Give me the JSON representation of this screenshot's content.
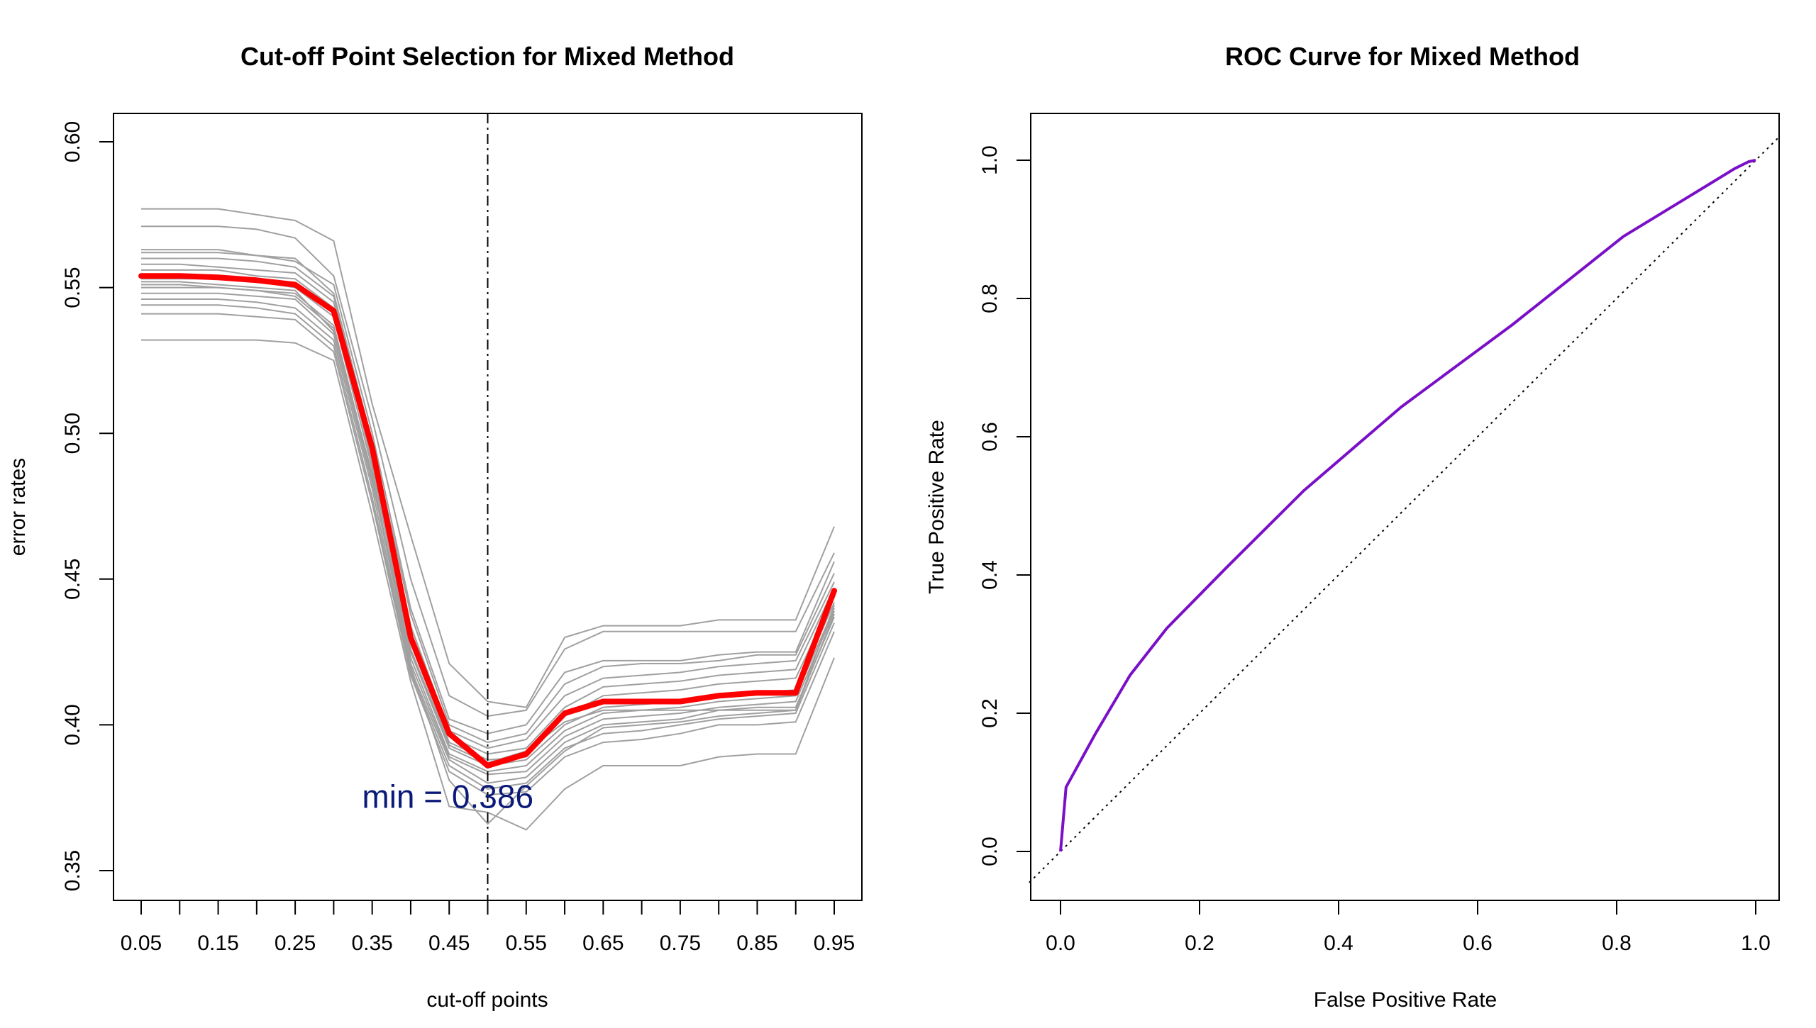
{
  "chart_data": [
    {
      "type": "line",
      "title": "Cut-off Point Selection for Mixed Method",
      "xlabel": "cut-off points",
      "ylabel": "error rates",
      "xlim": [
        0.05,
        0.95
      ],
      "ylim": [
        0.35,
        0.6
      ],
      "x": [
        0.05,
        0.1,
        0.15,
        0.2,
        0.25,
        0.3,
        0.35,
        0.4,
        0.45,
        0.5,
        0.55,
        0.6,
        0.65,
        0.7,
        0.75,
        0.8,
        0.85,
        0.9,
        0.95
      ],
      "x_tick_labels": [
        "0.05",
        "0.15",
        "0.25",
        "0.35",
        "0.45",
        "0.55",
        "0.65",
        "0.75",
        "0.85",
        "0.95"
      ],
      "y_ticks": [
        0.35,
        0.4,
        0.45,
        0.5,
        0.55,
        0.6
      ],
      "y_tick_labels": [
        "0.35",
        "0.40",
        "0.45",
        "0.50",
        "0.55",
        "0.60"
      ],
      "cutoff_line_x": 0.5,
      "annotation": "min = 0.386",
      "mean_color": "#ff0000",
      "background_color": "#a0a0a0",
      "mean": [
        0.554,
        0.554,
        0.5535,
        0.5525,
        0.551,
        0.542,
        0.495,
        0.43,
        0.397,
        0.386,
        0.39,
        0.404,
        0.408,
        0.408,
        0.408,
        0.41,
        0.411,
        0.411,
        0.446
      ],
      "background_series": [
        [
          0.577,
          0.577,
          0.577,
          0.575,
          0.573,
          0.566,
          0.51,
          0.465,
          0.421,
          0.408,
          0.406,
          0.43,
          0.434,
          0.434,
          0.434,
          0.436,
          0.436,
          0.436,
          0.468
        ],
        [
          0.571,
          0.571,
          0.571,
          0.57,
          0.567,
          0.554,
          0.505,
          0.45,
          0.41,
          0.403,
          0.405,
          0.426,
          0.432,
          0.432,
          0.432,
          0.432,
          0.432,
          0.432,
          0.459
        ],
        [
          0.563,
          0.563,
          0.563,
          0.561,
          0.559,
          0.551,
          0.5,
          0.44,
          0.402,
          0.397,
          0.4,
          0.418,
          0.422,
          0.422,
          0.422,
          0.424,
          0.425,
          0.425,
          0.456
        ],
        [
          0.562,
          0.562,
          0.562,
          0.561,
          0.56,
          0.548,
          0.497,
          0.438,
          0.4,
          0.394,
          0.397,
          0.414,
          0.42,
          0.421,
          0.421,
          0.422,
          0.424,
          0.424,
          0.452
        ],
        [
          0.56,
          0.56,
          0.56,
          0.559,
          0.557,
          0.547,
          0.495,
          0.434,
          0.398,
          0.392,
          0.395,
          0.41,
          0.416,
          0.417,
          0.418,
          0.42,
          0.421,
          0.422,
          0.449
        ],
        [
          0.558,
          0.558,
          0.557,
          0.556,
          0.555,
          0.545,
          0.492,
          0.431,
          0.396,
          0.39,
          0.392,
          0.406,
          0.413,
          0.414,
          0.415,
          0.417,
          0.418,
          0.419,
          0.447
        ],
        [
          0.556,
          0.556,
          0.556,
          0.554,
          0.553,
          0.543,
          0.49,
          0.428,
          0.394,
          0.388,
          0.389,
          0.403,
          0.41,
          0.411,
          0.412,
          0.414,
          0.415,
          0.416,
          0.444
        ],
        [
          0.553,
          0.553,
          0.553,
          0.552,
          0.55,
          0.54,
          0.488,
          0.425,
          0.392,
          0.386,
          0.388,
          0.4,
          0.406,
          0.407,
          0.408,
          0.41,
          0.411,
          0.412,
          0.442
        ],
        [
          0.551,
          0.551,
          0.55,
          0.549,
          0.548,
          0.537,
          0.485,
          0.423,
          0.39,
          0.384,
          0.386,
          0.398,
          0.404,
          0.405,
          0.406,
          0.408,
          0.409,
          0.41,
          0.44
        ],
        [
          0.55,
          0.55,
          0.55,
          0.549,
          0.547,
          0.536,
          0.484,
          0.421,
          0.389,
          0.383,
          0.384,
          0.396,
          0.402,
          0.403,
          0.404,
          0.406,
          0.407,
          0.408,
          0.439
        ],
        [
          0.546,
          0.546,
          0.546,
          0.545,
          0.543,
          0.532,
          0.481,
          0.419,
          0.388,
          0.38,
          0.382,
          0.394,
          0.4,
          0.401,
          0.402,
          0.405,
          0.406,
          0.406,
          0.437
        ],
        [
          0.544,
          0.544,
          0.544,
          0.543,
          0.541,
          0.53,
          0.478,
          0.418,
          0.386,
          0.378,
          0.38,
          0.392,
          0.397,
          0.398,
          0.4,
          0.402,
          0.403,
          0.404,
          0.435
        ],
        [
          0.541,
          0.541,
          0.541,
          0.54,
          0.539,
          0.528,
          0.476,
          0.417,
          0.384,
          0.376,
          0.377,
          0.389,
          0.394,
          0.395,
          0.397,
          0.4,
          0.4,
          0.401,
          0.432
        ],
        [
          0.532,
          0.532,
          0.532,
          0.532,
          0.531,
          0.525,
          0.472,
          0.415,
          0.372,
          0.37,
          0.364,
          0.378,
          0.386,
          0.386,
          0.386,
          0.389,
          0.39,
          0.39,
          0.423
        ],
        [
          0.552,
          0.552,
          0.551,
          0.55,
          0.549,
          0.535,
          0.486,
          0.42,
          0.381,
          0.366,
          0.379,
          0.391,
          0.399,
          0.4,
          0.401,
          0.403,
          0.404,
          0.405,
          0.438
        ],
        [
          0.548,
          0.548,
          0.548,
          0.547,
          0.546,
          0.534,
          0.483,
          0.426,
          0.393,
          0.387,
          0.391,
          0.401,
          0.405,
          0.405,
          0.405,
          0.405,
          0.405,
          0.405,
          0.441
        ]
      ]
    },
    {
      "type": "line",
      "title": "ROC Curve for Mixed Method",
      "xlabel": "False Positive Rate",
      "ylabel": "True Positive Rate",
      "xlim": [
        0.0,
        1.0
      ],
      "ylim": [
        0.0,
        1.0
      ],
      "x_ticks": [
        0.0,
        0.2,
        0.4,
        0.6,
        0.8,
        1.0
      ],
      "x_tick_labels": [
        "0.0",
        "0.2",
        "0.4",
        "0.6",
        "0.8",
        "1.0"
      ],
      "y_ticks": [
        0.0,
        0.2,
        0.4,
        0.6,
        0.8,
        1.0
      ],
      "y_tick_labels": [
        "0.0",
        "0.2",
        "0.4",
        "0.6",
        "0.8",
        "1.0"
      ],
      "reference_line": "diagonal",
      "curve_color": "#7a0fc8",
      "fpr": [
        0.0,
        0.008,
        0.05,
        0.1,
        0.153,
        0.24,
        0.35,
        0.49,
        0.65,
        0.81,
        0.9,
        0.97,
        0.99,
        1.0
      ],
      "tpr": [
        0.0,
        0.093,
        0.17,
        0.255,
        0.323,
        0.412,
        0.522,
        0.643,
        0.762,
        0.89,
        0.945,
        0.988,
        0.998,
        1.0
      ]
    }
  ]
}
